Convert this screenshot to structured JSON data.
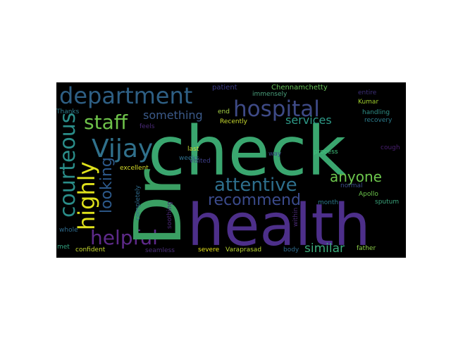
{
  "words": {
    "check": {
      "text": "check",
      "color": "#3aa66f"
    },
    "dr": {
      "text": "Dr",
      "color": "#3a9f63"
    },
    "health": {
      "text": "health",
      "color": "#4d2f8a"
    },
    "department": {
      "text": "department",
      "color": "#2e5f84"
    },
    "hospital": {
      "text": "hospital",
      "color": "#3e4a86"
    },
    "staff": {
      "text": "staff",
      "color": "#6ec24a"
    },
    "vijay": {
      "text": "Vijay",
      "color": "#30718c"
    },
    "courteous": {
      "text": "courteous",
      "color": "#2a8d89"
    },
    "highly": {
      "text": "highly",
      "color": "#dfe11c"
    },
    "looking": {
      "text": "looking",
      "color": "#2d5a8c"
    },
    "helpful": {
      "text": "helpful",
      "color": "#5e2a8a"
    },
    "attentive": {
      "text": "attentive",
      "color": "#2e6f8d"
    },
    "recommend": {
      "text": "recommend",
      "color": "#3b4b8c"
    },
    "anyone": {
      "text": "anyone",
      "color": "#6dc74d"
    },
    "services": {
      "text": "services",
      "color": "#2e9a88"
    },
    "something": {
      "text": "something",
      "color": "#3b5a8a"
    },
    "similar": {
      "text": "similar",
      "color": "#3aaa7a"
    },
    "patient": {
      "text": "patient",
      "color": "#3c3b88"
    },
    "chennamchetty": {
      "text": "Chennamchetty",
      "color": "#68c25a"
    },
    "immensely": {
      "text": "immensely",
      "color": "#4aa07d"
    },
    "entire": {
      "text": "entire",
      "color": "#3d2f78"
    },
    "kumar": {
      "text": "Kumar",
      "color": "#9fcf2c"
    },
    "handling": {
      "text": "handling",
      "color": "#2e8f87"
    },
    "recovery": {
      "text": "recovery",
      "color": "#2c7c8d"
    },
    "thanks": {
      "text": "Thanks",
      "color": "#2e7c8c"
    },
    "end": {
      "text": "end",
      "color": "#a6d244"
    },
    "feels": {
      "text": "feels",
      "color": "#4a2a78"
    },
    "recently": {
      "text": "Recently",
      "color": "#c8d92e"
    },
    "cough": {
      "text": "cough",
      "color": "#4a1f72"
    },
    "last": {
      "text": "last",
      "color": "#c8db35"
    },
    "way": {
      "text": "way",
      "color": "#3b4a88"
    },
    "process": {
      "text": "process",
      "color": "#40c17d"
    },
    "visited": {
      "text": "visited",
      "color": "#3c3d86"
    },
    "weeks": {
      "text": "weeks",
      "color": "#2f6f8d"
    },
    "excellent": {
      "text": "excellent",
      "color": "#d7dd2a"
    },
    "soothing": {
      "text": "soothing",
      "color": "#4a2775"
    },
    "completely": {
      "text": "completely",
      "color": "#2f6a8c"
    },
    "apollo": {
      "text": "Apollo",
      "color": "#6cc64c"
    },
    "normal": {
      "text": "normal",
      "color": "#3b4b8a"
    },
    "month": {
      "text": "month",
      "color": "#2c7a8b"
    },
    "sputum": {
      "text": "sputum",
      "color": "#3aa37b"
    },
    "within": {
      "text": "within",
      "color": "#4a2a76"
    },
    "whole": {
      "text": "whole",
      "color": "#2e6a8c"
    },
    "met": {
      "text": "met",
      "color": "#34a683"
    },
    "confident": {
      "text": "confident",
      "color": "#c8db2f"
    },
    "seamless": {
      "text": "seamless",
      "color": "#4a2e7a"
    },
    "severe": {
      "text": "severe",
      "color": "#e6e318"
    },
    "varaprasad": {
      "text": "Varaprasad",
      "color": "#bcd831"
    },
    "body": {
      "text": "body",
      "color": "#2e6a8c"
    },
    "father": {
      "text": "father",
      "color": "#8ed049"
    }
  }
}
